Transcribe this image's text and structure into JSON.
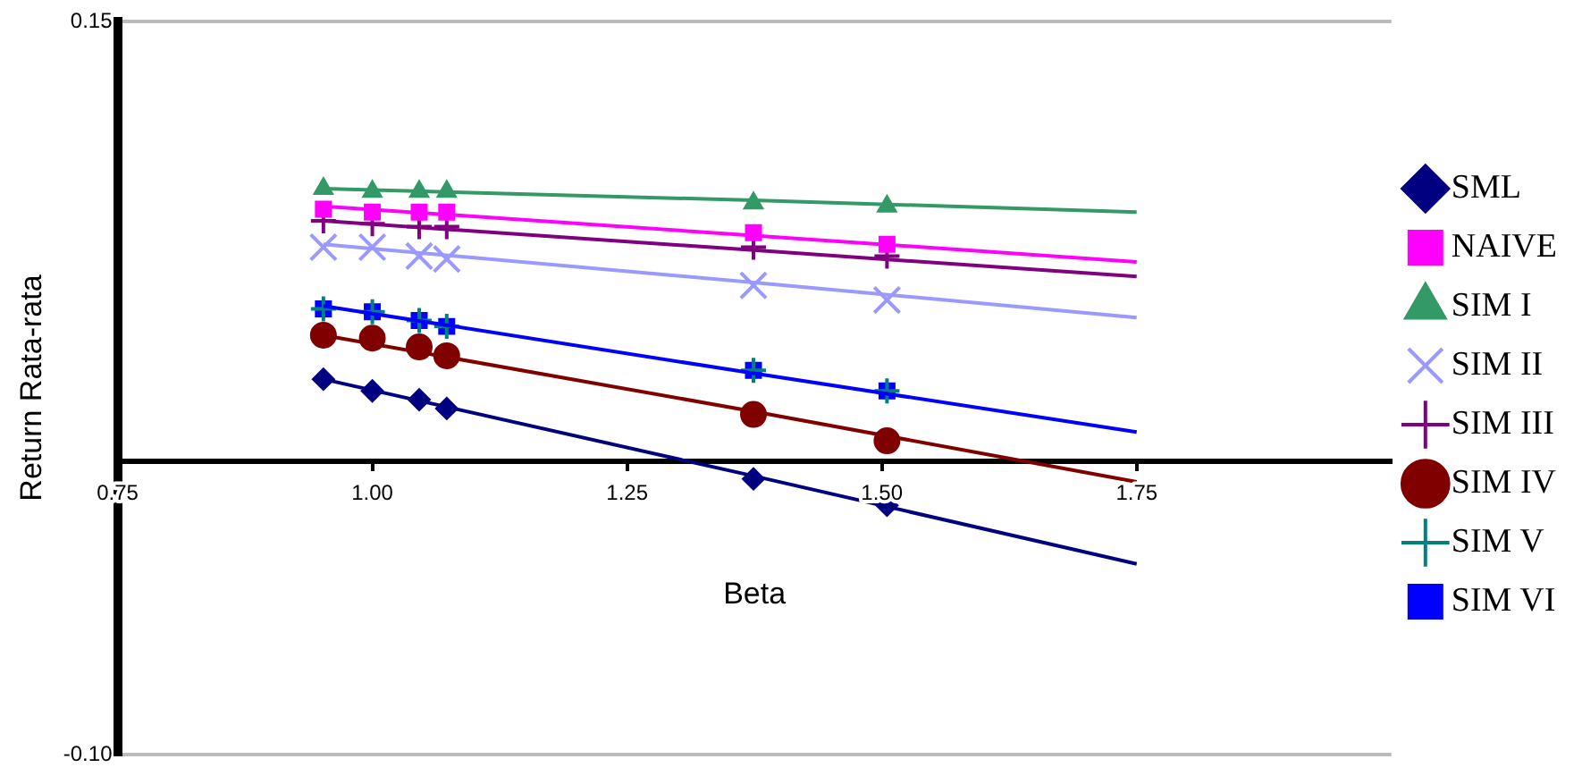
{
  "chart_data": {
    "type": "line",
    "xlabel": "Beta",
    "ylabel": "Return Rata-rata",
    "x": [
      0.952,
      1.0,
      1.046,
      1.073,
      1.374,
      1.505
    ],
    "xlim": [
      0.75,
      2.0
    ],
    "xticks": [
      {
        "value": 0.75,
        "label": "0.75"
      },
      {
        "value": 1,
        "label": "1.00"
      },
      {
        "value": 1.25,
        "label": "1.25"
      },
      {
        "value": 1.5,
        "label": "1.50"
      },
      {
        "value": 1.75,
        "label": "1.75"
      }
    ],
    "ylim": [
      -0.1,
      0.15
    ],
    "yticks": [
      {
        "value": -0.1,
        "label": "-0.10"
      },
      {
        "value": 0.15,
        "label": "0.15"
      }
    ],
    "grid": "y",
    "legend": "right",
    "line_style": "solid",
    "series": [
      {
        "name": "SML",
        "type": "scatter",
        "color": "#000080",
        "marker": "diamond",
        "values": [
          0.028,
          0.024,
          0.021,
          0.018,
          -0.006,
          -0.015
        ]
      },
      {
        "name": "NAIVE",
        "type": "scatter",
        "color": "#ff00ff",
        "marker": "square",
        "values": [
          0.086,
          0.085,
          0.085,
          0.085,
          0.078,
          0.074
        ]
      },
      {
        "name": "SIM I",
        "type": "scatter",
        "color": "#339966",
        "marker": "triangle",
        "values": [
          0.093,
          0.092,
          0.092,
          0.092,
          0.088,
          0.087
        ]
      },
      {
        "name": "SIM II",
        "type": "scatter",
        "color": "#9999ff",
        "marker": "x",
        "values": [
          0.073,
          0.073,
          0.07,
          0.069,
          0.06,
          0.055
        ]
      },
      {
        "name": "SIM III",
        "type": "scatter",
        "color": "#800080",
        "marker": "cross",
        "values": [
          0.082,
          0.081,
          0.08,
          0.08,
          0.073,
          0.07
        ]
      },
      {
        "name": "SIM IV",
        "type": "scatter",
        "color": "#800000",
        "marker": "circle",
        "values": [
          0.043,
          0.042,
          0.039,
          0.036,
          0.016,
          0.007
        ]
      },
      {
        "name": "SIM V",
        "type": "scatter",
        "color": "#008080",
        "marker": "cross",
        "values": [
          0.052,
          0.051,
          0.048,
          0.046,
          0.031,
          0.024
        ]
      },
      {
        "name": "SIM VI",
        "type": "scatter",
        "color": "#0000ff",
        "marker": "square",
        "values": [
          0.052,
          0.051,
          0.048,
          0.046,
          0.031,
          0.024
        ]
      },
      {
        "type": "line",
        "color": "#000080",
        "marker": "none",
        "x": [
          0.952,
          1.374,
          1.75
        ],
        "values": [
          0.028,
          -0.005,
          -0.035
        ]
      },
      {
        "type": "line",
        "color": "#ff00ff",
        "marker": "none",
        "x": [
          0.952,
          1.374,
          1.75
        ],
        "values": [
          0.087,
          0.077,
          0.068
        ]
      },
      {
        "type": "line",
        "color": "#339966",
        "marker": "none",
        "x": [
          0.952,
          1.374,
          1.75
        ],
        "values": [
          0.093,
          0.089,
          0.085
        ]
      },
      {
        "type": "line",
        "color": "#9999ff",
        "marker": "none",
        "x": [
          0.952,
          1.374,
          1.75
        ],
        "values": [
          0.074,
          0.061,
          0.049
        ]
      },
      {
        "type": "line",
        "color": "#800080",
        "marker": "none",
        "x": [
          0.952,
          1.374,
          1.75
        ],
        "values": [
          0.082,
          0.072,
          0.063
        ]
      },
      {
        "type": "line",
        "color": "#800000",
        "marker": "none",
        "x": [
          0.952,
          1.374,
          1.75
        ],
        "values": [
          0.043,
          0.017,
          -0.007
        ]
      },
      {
        "type": "line",
        "color": "#0000ff",
        "marker": "none",
        "x": [
          0.952,
          1.374,
          1.75
        ],
        "values": [
          0.053,
          0.03,
          0.01
        ]
      }
    ]
  }
}
